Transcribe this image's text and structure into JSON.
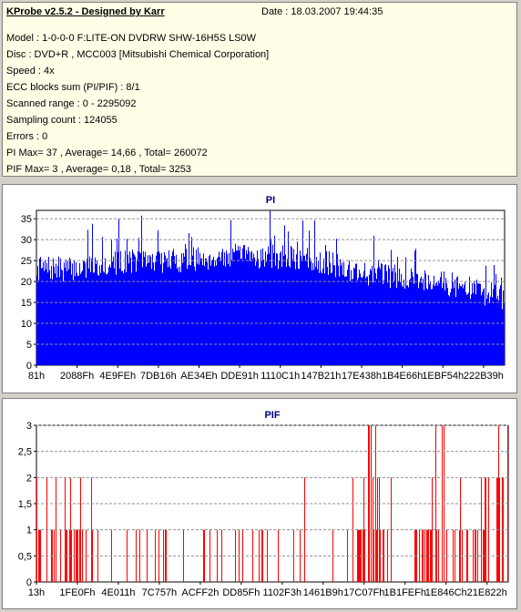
{
  "header": {
    "title": "KProbe v2.5.2 - Designed by Karr",
    "date": "Date : 18.03.2007 19:44:35",
    "lines": [
      "Model : 1-0-0-0 F:LITE-ON DVDRW SHW-16H5S  LS0W",
      "Disc : DVD+R , MCC003 [Mitsubishi Chemical Corporation]",
      "Speed : 4x",
      "ECC blocks sum (PI/PIF) : 8/1",
      "Scanned range : 0 - 2295092",
      "Sampling count : 124055",
      "Errors : 0",
      "PI Max= 37 , Average= 14,66 , Total= 260072",
      "PIF Max= 3 , Average= 0,18 , Total= 3253"
    ]
  },
  "chart_data": [
    {
      "type": "bar",
      "title": "PI",
      "color": "#0000ff",
      "ylim": [
        0,
        37
      ],
      "yticks": [
        "0",
        "5",
        "10",
        "15",
        "20",
        "25",
        "30",
        "35"
      ],
      "xticks": [
        "81h",
        "2088Fh",
        "4E9FEh",
        "7DB16h",
        "AE34Eh",
        "DDE91h",
        "1110C1h",
        "147B21h",
        "17E438h",
        "1B4E66h",
        "1EBF54h",
        "222B39h"
      ],
      "grid": true,
      "profile_x": [
        0,
        0.08,
        0.2,
        0.3,
        0.4,
        0.5,
        0.6,
        0.7,
        0.8,
        0.9,
        1.0
      ],
      "profile_y": [
        24,
        24,
        26,
        26,
        27,
        27,
        26,
        23,
        22,
        20,
        17
      ],
      "max": 37,
      "average": 14.66
    },
    {
      "type": "bar",
      "title": "PIF",
      "color": "#ff0000",
      "ylim": [
        0,
        3
      ],
      "yticks": [
        "0",
        "0,5",
        "1",
        "1,5",
        "2",
        "2,5",
        "3"
      ],
      "xticks": [
        "13h",
        "1FE0Fh",
        "4E011h",
        "7C757h",
        "ACFF2h",
        "DD85Fh",
        "1102F3h",
        "1461B9h",
        "17C07Fh",
        "1B1FEFh",
        "1E846Ch",
        "21E822h"
      ],
      "grid": true,
      "max": 3,
      "average": 0.18
    }
  ]
}
